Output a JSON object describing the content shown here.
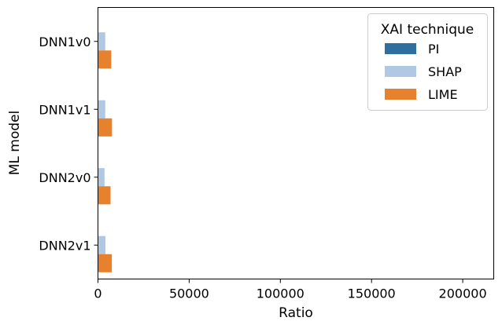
{
  "chart_data": {
    "type": "bar",
    "orientation": "horizontal",
    "xlabel": "Ratio",
    "ylabel": "ML model",
    "categories": [
      "DNN1v0",
      "DNN1v1",
      "DNN2v0",
      "DNN2v1"
    ],
    "xlim": [
      0,
      217000
    ],
    "xticks": [
      0,
      50000,
      100000,
      150000,
      200000
    ],
    "xtick_labels": [
      "0",
      "50000",
      "100000",
      "150000",
      "200000"
    ],
    "grid": false,
    "legend": {
      "title": "XAI technique",
      "placement": "top-right"
    },
    "series": [
      {
        "name": "PI",
        "color": "#2e6fa0",
        "values": [
          150,
          150,
          150,
          150
        ]
      },
      {
        "name": "SHAP",
        "color": "#afc8e3",
        "values": [
          4000,
          4000,
          3600,
          4100
        ]
      },
      {
        "name": "LIME",
        "color": "#e6822e",
        "values": [
          7300,
          7700,
          6900,
          7600
        ]
      }
    ]
  }
}
